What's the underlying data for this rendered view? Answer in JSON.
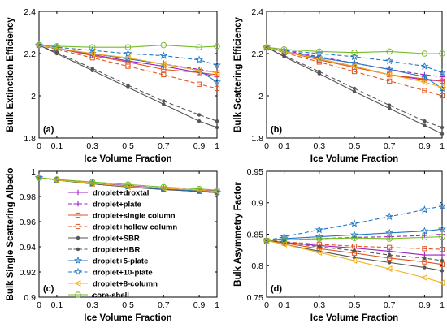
{
  "x_axis_label": "Ice Volume Fraction",
  "colors": {
    "droxtal": "#a020c0",
    "plate": "#a020c0",
    "single_column": "#e0521c",
    "hollow_column": "#e0521c",
    "sbr": "#555555",
    "hbr": "#555555",
    "five_plate": "#1f77c4",
    "ten_plate": "#1f77c4",
    "eight_column": "#f5b01e",
    "core_shell": "#77bb2a"
  },
  "chart_data": [
    {
      "type": "line",
      "panel_label": "(a)",
      "ylabel": "Bulk Extinction Efficiency",
      "xlabel": "Ice Volume Fraction",
      "xlim": [
        0,
        1
      ],
      "ylim": [
        1.8,
        2.4
      ],
      "xticks": [
        "0",
        "0.1",
        "0.3",
        "0.5",
        "0.7",
        "0.9",
        "1"
      ],
      "yticks": [
        "1.8",
        "2",
        "2.2",
        "2.4"
      ],
      "grid": false,
      "x": [
        0,
        0.1,
        0.3,
        0.5,
        0.7,
        0.9,
        1
      ],
      "series": [
        {
          "name": "droplet+droxtal",
          "values": [
            2.24,
            2.225,
            2.195,
            2.165,
            2.14,
            2.11,
            2.09
          ]
        },
        {
          "name": "droplet+plate",
          "values": [
            2.24,
            2.225,
            2.2,
            2.175,
            2.15,
            2.125,
            2.11
          ]
        },
        {
          "name": "droplet+single column",
          "values": [
            2.24,
            2.225,
            2.19,
            2.16,
            2.125,
            2.11,
            2.1
          ]
        },
        {
          "name": "droplet+hollow column",
          "values": [
            2.24,
            2.22,
            2.18,
            2.14,
            2.1,
            2.055,
            2.035
          ]
        },
        {
          "name": "droplet+SBR",
          "values": [
            2.24,
            2.2,
            2.12,
            2.04,
            1.96,
            1.88,
            1.85
          ]
        },
        {
          "name": "droplet+HBR",
          "values": [
            2.24,
            2.205,
            2.13,
            2.05,
            1.975,
            1.91,
            1.88
          ]
        },
        {
          "name": "droplet+5-plate",
          "values": [
            2.24,
            2.225,
            2.2,
            2.175,
            2.15,
            2.12,
            2.065
          ]
        },
        {
          "name": "droplet+10-plate",
          "values": [
            2.24,
            2.23,
            2.215,
            2.2,
            2.19,
            2.17,
            2.145
          ]
        },
        {
          "name": "droplet+8-column",
          "values": [
            2.24,
            2.225,
            2.2,
            2.18,
            2.15,
            2.12,
            2.11
          ]
        },
        {
          "name": "core-shell",
          "values": [
            2.24,
            2.235,
            2.23,
            2.23,
            2.24,
            2.23,
            2.235
          ]
        }
      ]
    },
    {
      "type": "line",
      "panel_label": "(b)",
      "ylabel": "Bulk Scattering Efficiency",
      "xlabel": "Ice Volume Fraction",
      "xlim": [
        0,
        1
      ],
      "ylim": [
        1.8,
        2.4
      ],
      "xticks": [
        "0",
        "0.1",
        "0.3",
        "0.5",
        "0.7",
        "0.9",
        "1"
      ],
      "yticks": [
        "1.8",
        "2",
        "2.2",
        "2.4"
      ],
      "grid": false,
      "x": [
        0,
        0.1,
        0.3,
        0.5,
        0.7,
        0.9,
        1
      ],
      "series": [
        {
          "name": "droplet+droxtal",
          "values": [
            2.23,
            2.21,
            2.175,
            2.14,
            2.1,
            2.075,
            2.07
          ]
        },
        {
          "name": "droplet+plate",
          "values": [
            2.23,
            2.215,
            2.185,
            2.155,
            2.125,
            2.1,
            2.09
          ]
        },
        {
          "name": "droplet+single column",
          "values": [
            2.23,
            2.21,
            2.17,
            2.135,
            2.1,
            2.08,
            2.07
          ]
        },
        {
          "name": "droplet+hollow column",
          "values": [
            2.23,
            2.205,
            2.16,
            2.115,
            2.07,
            2.025,
            2.0
          ]
        },
        {
          "name": "droplet+SBR",
          "values": [
            2.23,
            2.185,
            2.105,
            2.02,
            1.94,
            1.86,
            1.82
          ]
        },
        {
          "name": "droplet+HBR",
          "values": [
            2.23,
            2.19,
            2.115,
            2.035,
            1.955,
            1.88,
            1.85
          ]
        },
        {
          "name": "droplet+5-plate",
          "values": [
            2.23,
            2.21,
            2.18,
            2.155,
            2.125,
            2.09,
            2.035
          ]
        },
        {
          "name": "droplet+10-plate",
          "values": [
            2.23,
            2.215,
            2.2,
            2.185,
            2.165,
            2.14,
            2.11
          ]
        },
        {
          "name": "droplet+8-column",
          "values": [
            2.23,
            2.21,
            2.175,
            2.14,
            2.1,
            2.065,
            2.04
          ]
        },
        {
          "name": "core-shell",
          "values": [
            2.23,
            2.22,
            2.21,
            2.205,
            2.21,
            2.2,
            2.2
          ]
        }
      ]
    },
    {
      "type": "line",
      "panel_label": "(c)",
      "ylabel": "Bulk Single Scattering Albedo",
      "xlabel": "Ice Volume Fraction",
      "xlim": [
        0,
        1
      ],
      "ylim": [
        0.9,
        1.0
      ],
      "xticks": [
        "0",
        "0.1",
        "0.3",
        "0.5",
        "0.7",
        "0.9",
        "1"
      ],
      "yticks": [
        "0.9",
        "0.92",
        "0.94",
        "0.96",
        "0.98",
        "1"
      ],
      "grid": false,
      "legend_position": "inside-left",
      "x": [
        0,
        0.1,
        0.3,
        0.5,
        0.7,
        0.9,
        1
      ],
      "series": [
        {
          "name": "droplet+droxtal",
          "values": [
            0.995,
            0.993,
            0.9905,
            0.9885,
            0.9865,
            0.985,
            0.9845
          ]
        },
        {
          "name": "droplet+plate",
          "values": [
            0.995,
            0.993,
            0.9905,
            0.9885,
            0.9865,
            0.985,
            0.984
          ]
        },
        {
          "name": "droplet+single column",
          "values": [
            0.995,
            0.993,
            0.9905,
            0.988,
            0.986,
            0.9845,
            0.984
          ]
        },
        {
          "name": "droplet+hollow column",
          "values": [
            0.995,
            0.993,
            0.99,
            0.988,
            0.986,
            0.984,
            0.983
          ]
        },
        {
          "name": "droplet+SBR",
          "values": [
            0.995,
            0.993,
            0.99,
            0.9875,
            0.9855,
            0.984,
            0.983
          ]
        },
        {
          "name": "droplet+HBR",
          "values": [
            0.995,
            0.993,
            0.99,
            0.9875,
            0.9855,
            0.984,
            0.983
          ]
        },
        {
          "name": "droplet+5-plate",
          "values": [
            0.995,
            0.993,
            0.9905,
            0.988,
            0.986,
            0.9845,
            0.9835
          ]
        },
        {
          "name": "droplet+10-plate",
          "values": [
            0.995,
            0.993,
            0.9905,
            0.988,
            0.986,
            0.9845,
            0.9835
          ]
        },
        {
          "name": "droplet+8-column",
          "values": [
            0.995,
            0.993,
            0.9905,
            0.988,
            0.9865,
            0.985,
            0.984
          ]
        },
        {
          "name": "core-shell",
          "values": [
            0.995,
            0.9935,
            0.9915,
            0.9895,
            0.9875,
            0.986,
            0.985
          ]
        }
      ]
    },
    {
      "type": "line",
      "panel_label": "(d)",
      "ylabel": "Bulk Asymmetry Factor",
      "xlabel": "Ice Volume Fraction",
      "xlim": [
        0,
        1
      ],
      "ylim": [
        0.75,
        0.95
      ],
      "xticks": [
        "0",
        "0.1",
        "0.3",
        "0.5",
        "0.7",
        "0.9",
        "1"
      ],
      "yticks": [
        "0.75",
        "0.8",
        "0.85",
        "0.9",
        "0.95"
      ],
      "grid": false,
      "x": [
        0,
        0.1,
        0.3,
        0.5,
        0.7,
        0.9,
        1
      ],
      "series": [
        {
          "name": "droplet+droxtal",
          "values": [
            0.84,
            0.837,
            0.832,
            0.828,
            0.823,
            0.817,
            0.817
          ]
        },
        {
          "name": "droplet+plate",
          "values": [
            0.84,
            0.841,
            0.843,
            0.845,
            0.846,
            0.848,
            0.85
          ]
        },
        {
          "name": "droplet+single column",
          "values": [
            0.84,
            0.836,
            0.827,
            0.82,
            0.812,
            0.806,
            0.802
          ]
        },
        {
          "name": "droplet+hollow column",
          "values": [
            0.84,
            0.838,
            0.834,
            0.831,
            0.829,
            0.827,
            0.826
          ]
        },
        {
          "name": "droplet+SBR",
          "values": [
            0.84,
            0.834,
            0.823,
            0.813,
            0.805,
            0.797,
            0.792
          ]
        },
        {
          "name": "droplet+HBR",
          "values": [
            0.84,
            0.837,
            0.83,
            0.824,
            0.817,
            0.812,
            0.808
          ]
        },
        {
          "name": "droplet+5-plate",
          "values": [
            0.84,
            0.843,
            0.846,
            0.849,
            0.852,
            0.855,
            0.858
          ]
        },
        {
          "name": "droplet+10-plate",
          "values": [
            0.84,
            0.846,
            0.857,
            0.867,
            0.878,
            0.889,
            0.895
          ]
        },
        {
          "name": "droplet+8-column",
          "values": [
            0.84,
            0.834,
            0.821,
            0.808,
            0.795,
            0.781,
            0.773
          ]
        },
        {
          "name": "core-shell",
          "values": [
            0.84,
            0.841,
            0.843,
            0.844,
            0.843,
            0.845,
            0.846
          ]
        }
      ]
    }
  ],
  "legend": [
    {
      "name": "droplet+droxtal",
      "color_key": "droxtal",
      "marker": "plus",
      "dash": false
    },
    {
      "name": "droplet+plate",
      "color_key": "plate",
      "marker": "plus",
      "dash": true
    },
    {
      "name": "droplet+single column",
      "color_key": "single_column",
      "marker": "square",
      "dash": false
    },
    {
      "name": "droplet+hollow column",
      "color_key": "hollow_column",
      "marker": "square",
      "dash": true
    },
    {
      "name": "droplet+SBR",
      "color_key": "sbr",
      "marker": "dot",
      "dash": false
    },
    {
      "name": "droplet+HBR",
      "color_key": "hbr",
      "marker": "dot",
      "dash": true
    },
    {
      "name": "droplet+5-plate",
      "color_key": "five_plate",
      "marker": "star",
      "dash": false
    },
    {
      "name": "droplet+10-plate",
      "color_key": "ten_plate",
      "marker": "star",
      "dash": true
    },
    {
      "name": "droplet+8-column",
      "color_key": "eight_column",
      "marker": "triangle-left",
      "dash": false
    },
    {
      "name": "core-shell",
      "color_key": "core_shell",
      "marker": "circle",
      "dash": false
    }
  ]
}
